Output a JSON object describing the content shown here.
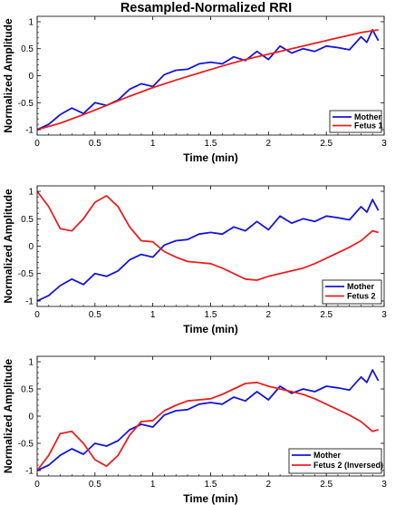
{
  "chart_data": [
    {
      "type": "line",
      "title": "Resampled-Normalized RRI",
      "xlabel": "Time (min)",
      "ylabel": "Normalized Amplitude",
      "xlim": [
        0,
        3
      ],
      "ylim": [
        -1.1,
        1.1
      ],
      "xticks": [
        "0",
        "0.5",
        "1",
        "1.5",
        "2",
        "2.5",
        "3"
      ],
      "yticks": [
        "-1",
        "-0.5",
        "0",
        "0.5",
        "1"
      ],
      "grid": false,
      "legend": "bottom-right",
      "colors": [
        "#1515d8",
        "#e81f1f"
      ],
      "series": [
        {
          "name": "Mother",
          "x": [
            0,
            0.1,
            0.2,
            0.3,
            0.4,
            0.5,
            0.6,
            0.7,
            0.8,
            0.9,
            1.0,
            1.1,
            1.2,
            1.3,
            1.4,
            1.5,
            1.6,
            1.7,
            1.8,
            1.9,
            2.0,
            2.1,
            2.2,
            2.3,
            2.4,
            2.5,
            2.6,
            2.7,
            2.8,
            2.85,
            2.9,
            2.95
          ],
          "y": [
            -1.0,
            -0.9,
            -0.72,
            -0.6,
            -0.7,
            -0.5,
            -0.55,
            -0.45,
            -0.25,
            -0.15,
            -0.2,
            0.02,
            0.1,
            0.12,
            0.22,
            0.25,
            0.22,
            0.35,
            0.28,
            0.45,
            0.3,
            0.55,
            0.42,
            0.5,
            0.45,
            0.55,
            0.52,
            0.48,
            0.72,
            0.62,
            0.85,
            0.65
          ]
        },
        {
          "name": "Fetus 1",
          "x": [
            0,
            0.2,
            0.4,
            0.6,
            0.8,
            1.0,
            1.2,
            1.4,
            1.6,
            1.8,
            2.0,
            2.2,
            2.4,
            2.6,
            2.8,
            2.95
          ],
          "y": [
            -1.0,
            -0.88,
            -0.72,
            -0.55,
            -0.38,
            -0.22,
            -0.08,
            0.05,
            0.18,
            0.3,
            0.4,
            0.5,
            0.6,
            0.7,
            0.8,
            0.85
          ]
        }
      ]
    },
    {
      "type": "line",
      "xlabel": "Time (min)",
      "ylabel": "Normalized Amplitude",
      "xlim": [
        0,
        3
      ],
      "ylim": [
        -1.1,
        1.1
      ],
      "xticks": [
        "0",
        "0.5",
        "1",
        "1.5",
        "2",
        "2.5",
        "3"
      ],
      "yticks": [
        "-1",
        "-0.5",
        "0",
        "0.5",
        "1"
      ],
      "grid": false,
      "legend": "bottom-right",
      "colors": [
        "#1515d8",
        "#e81f1f"
      ],
      "series": [
        {
          "name": "Mother",
          "x": [
            0,
            0.1,
            0.2,
            0.3,
            0.4,
            0.5,
            0.6,
            0.7,
            0.8,
            0.9,
            1.0,
            1.1,
            1.2,
            1.3,
            1.4,
            1.5,
            1.6,
            1.7,
            1.8,
            1.9,
            2.0,
            2.1,
            2.2,
            2.3,
            2.4,
            2.5,
            2.6,
            2.7,
            2.8,
            2.85,
            2.9,
            2.95
          ],
          "y": [
            -1.0,
            -0.9,
            -0.72,
            -0.6,
            -0.7,
            -0.5,
            -0.55,
            -0.45,
            -0.25,
            -0.15,
            -0.2,
            0.02,
            0.1,
            0.12,
            0.22,
            0.25,
            0.22,
            0.35,
            0.28,
            0.45,
            0.3,
            0.55,
            0.42,
            0.5,
            0.45,
            0.55,
            0.52,
            0.48,
            0.72,
            0.62,
            0.85,
            0.65
          ]
        },
        {
          "name": "Fetus 2",
          "x": [
            0,
            0.1,
            0.2,
            0.3,
            0.4,
            0.5,
            0.6,
            0.7,
            0.8,
            0.9,
            1.0,
            1.1,
            1.2,
            1.3,
            1.4,
            1.5,
            1.6,
            1.7,
            1.8,
            1.9,
            2.0,
            2.1,
            2.2,
            2.3,
            2.4,
            2.5,
            2.6,
            2.7,
            2.8,
            2.9,
            2.95
          ],
          "y": [
            1.0,
            0.72,
            0.32,
            0.28,
            0.5,
            0.8,
            0.92,
            0.72,
            0.35,
            0.1,
            0.08,
            -0.1,
            -0.2,
            -0.28,
            -0.3,
            -0.32,
            -0.4,
            -0.5,
            -0.6,
            -0.62,
            -0.55,
            -0.5,
            -0.45,
            -0.4,
            -0.32,
            -0.22,
            -0.12,
            -0.02,
            0.1,
            0.28,
            0.25
          ]
        }
      ]
    },
    {
      "type": "line",
      "xlabel": "Time (min)",
      "ylabel": "Normalized Amplitude",
      "xlim": [
        0,
        3
      ],
      "ylim": [
        -1.1,
        1.1
      ],
      "xticks": [
        "0",
        "0.5",
        "1",
        "1.5",
        "2",
        "2.5",
        "3"
      ],
      "yticks": [
        "-1",
        "-0.5",
        "0",
        "0.5",
        "1"
      ],
      "grid": false,
      "legend": "bottom-right",
      "colors": [
        "#1515d8",
        "#e81f1f"
      ],
      "series": [
        {
          "name": "Mother",
          "x": [
            0,
            0.1,
            0.2,
            0.3,
            0.4,
            0.5,
            0.6,
            0.7,
            0.8,
            0.9,
            1.0,
            1.1,
            1.2,
            1.3,
            1.4,
            1.5,
            1.6,
            1.7,
            1.8,
            1.9,
            2.0,
            2.1,
            2.2,
            2.3,
            2.4,
            2.5,
            2.6,
            2.7,
            2.8,
            2.85,
            2.9,
            2.95
          ],
          "y": [
            -1.0,
            -0.9,
            -0.72,
            -0.6,
            -0.7,
            -0.5,
            -0.55,
            -0.45,
            -0.25,
            -0.15,
            -0.2,
            0.02,
            0.1,
            0.12,
            0.22,
            0.25,
            0.22,
            0.35,
            0.28,
            0.45,
            0.3,
            0.55,
            0.42,
            0.5,
            0.45,
            0.55,
            0.52,
            0.48,
            0.72,
            0.62,
            0.85,
            0.65
          ]
        },
        {
          "name": "Fetus 2 (Inversed)",
          "x": [
            0,
            0.1,
            0.2,
            0.3,
            0.4,
            0.5,
            0.6,
            0.7,
            0.8,
            0.9,
            1.0,
            1.1,
            1.2,
            1.3,
            1.4,
            1.5,
            1.6,
            1.7,
            1.8,
            1.9,
            2.0,
            2.1,
            2.2,
            2.3,
            2.4,
            2.5,
            2.6,
            2.7,
            2.8,
            2.9,
            2.95
          ],
          "y": [
            -1.0,
            -0.72,
            -0.32,
            -0.28,
            -0.5,
            -0.8,
            -0.92,
            -0.72,
            -0.35,
            -0.1,
            -0.08,
            0.1,
            0.2,
            0.28,
            0.3,
            0.32,
            0.4,
            0.5,
            0.6,
            0.62,
            0.55,
            0.5,
            0.45,
            0.4,
            0.32,
            0.22,
            0.12,
            0.02,
            -0.1,
            -0.28,
            -0.25
          ]
        }
      ]
    }
  ]
}
